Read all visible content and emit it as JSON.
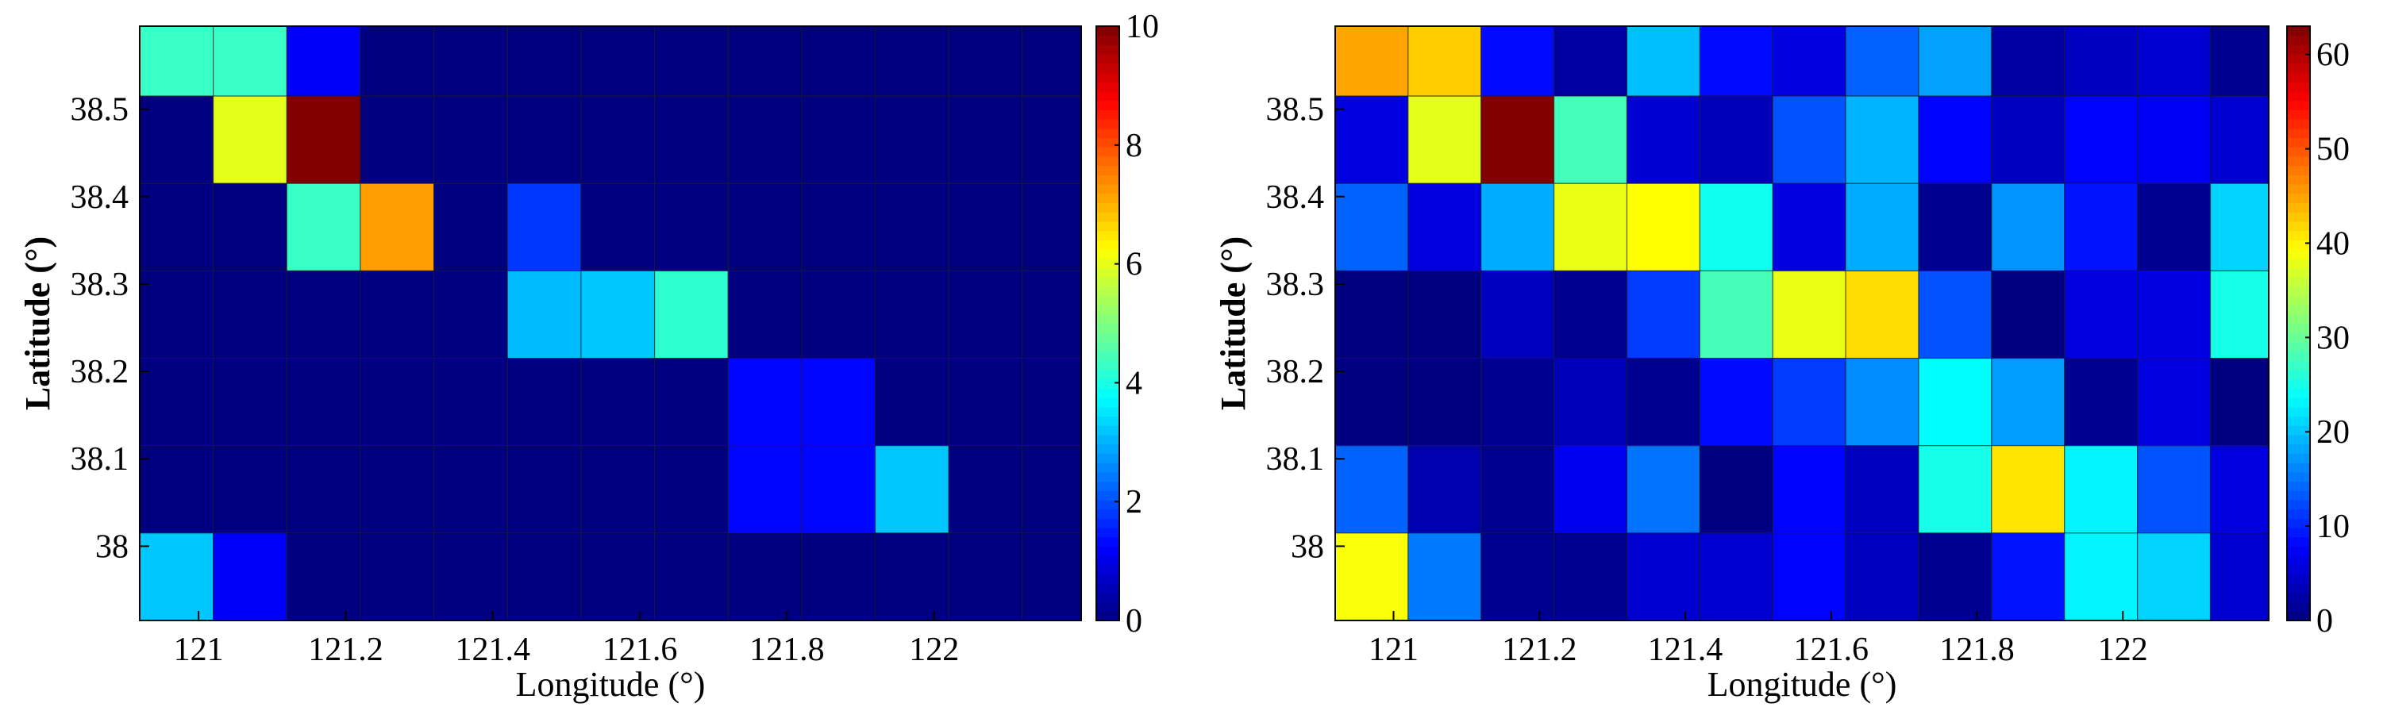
{
  "chart_data": [
    {
      "type": "heatmap",
      "xlabel": "Longitude (°)",
      "ylabel": "Latitude (°)",
      "xlim": [
        120.92,
        122.2
      ],
      "ylim": [
        37.915,
        38.595
      ],
      "x_edges": [
        120.92,
        121.02,
        121.12,
        121.22,
        121.32,
        121.42,
        121.52,
        121.62,
        121.72,
        121.82,
        121.92,
        122.02,
        122.12,
        122.2
      ],
      "y_edges": [
        38.595,
        38.515,
        38.415,
        38.315,
        38.215,
        38.115,
        38.015,
        37.915
      ],
      "x_ticks": [
        121,
        121.2,
        121.4,
        121.6,
        121.8,
        122
      ],
      "x_tick_labels": [
        "121",
        "121.2",
        "121.4",
        "121.6",
        "121.8",
        "122"
      ],
      "y_ticks": [
        38.5,
        38.4,
        38.3,
        38.2,
        38.1,
        38
      ],
      "y_tick_labels": [
        "38.5",
        "38.4",
        "38.3",
        "38.2",
        "38.1",
        "38"
      ],
      "colormap": "jet",
      "clim": [
        0,
        10
      ],
      "colorbar_ticks": [
        0,
        2,
        4,
        6,
        8,
        10
      ],
      "colorbar_tick_labels": [
        "0",
        "2",
        "4",
        "6",
        "8",
        "10"
      ],
      "values": [
        [
          4.3,
          4.3,
          1.2,
          0,
          0,
          0,
          0,
          0,
          0,
          0,
          0,
          0,
          0
        ],
        [
          0,
          6.0,
          10,
          0,
          0,
          0,
          0,
          0,
          0,
          0,
          0,
          0,
          0
        ],
        [
          0,
          0,
          4.3,
          7.2,
          0,
          1.8,
          0,
          0,
          0,
          0,
          0,
          0,
          0
        ],
        [
          0,
          0,
          0,
          0,
          0,
          3.1,
          3.2,
          4.2,
          0,
          0,
          0,
          0,
          0
        ],
        [
          0,
          0,
          0,
          0,
          0,
          0,
          0,
          0,
          1.3,
          1.3,
          0,
          0,
          0
        ],
        [
          0,
          0,
          0,
          0,
          0,
          0,
          0,
          0,
          1.3,
          1.3,
          3.2,
          0,
          0
        ],
        [
          3.2,
          1.2,
          0,
          0,
          0,
          0,
          0,
          0,
          0,
          0,
          0,
          0,
          0
        ]
      ]
    },
    {
      "type": "heatmap",
      "xlabel": "Longitude (°)",
      "ylabel": "Latitude (°)",
      "xlim": [
        120.92,
        122.2
      ],
      "ylim": [
        37.915,
        38.595
      ],
      "x_edges": [
        120.92,
        121.02,
        121.12,
        121.22,
        121.32,
        121.42,
        121.52,
        121.62,
        121.72,
        121.82,
        121.92,
        122.02,
        122.12,
        122.2
      ],
      "y_edges": [
        38.595,
        38.515,
        38.415,
        38.315,
        38.215,
        38.115,
        38.015,
        37.915
      ],
      "x_ticks": [
        121,
        121.2,
        121.4,
        121.6,
        121.8,
        122
      ],
      "x_tick_labels": [
        "121",
        "121.2",
        "121.4",
        "121.6",
        "121.8",
        "122"
      ],
      "y_ticks": [
        38.5,
        38.4,
        38.3,
        38.2,
        38.1,
        38
      ],
      "y_tick_labels": [
        "38.5",
        "38.4",
        "38.3",
        "38.2",
        "38.1",
        "38"
      ],
      "colormap": "jet",
      "clim": [
        0,
        63
      ],
      "colorbar_ticks": [
        0,
        10,
        20,
        30,
        40,
        50,
        60
      ],
      "colorbar_tick_labels": [
        "0",
        "10",
        "20",
        "30",
        "40",
        "50",
        "60"
      ],
      "values": [
        [
          45,
          42.5,
          8.5,
          2,
          19.7,
          8.5,
          6,
          14,
          17.8,
          2,
          4,
          5,
          1
        ],
        [
          6,
          37.8,
          63,
          27.8,
          5,
          3.5,
          13,
          19,
          8,
          4,
          8,
          7.5,
          5
        ],
        [
          14,
          6,
          18.5,
          38,
          39.4,
          24.5,
          6,
          18.5,
          1,
          17,
          9,
          1,
          21
        ],
        [
          0,
          0,
          4,
          1,
          11.5,
          28,
          38,
          41.5,
          13,
          0,
          6,
          6,
          25
        ],
        [
          0,
          0,
          1,
          3.5,
          1,
          8.5,
          11.5,
          16.5,
          23.6,
          17.5,
          1,
          6,
          0
        ],
        [
          14,
          3,
          1,
          7,
          15,
          0,
          8,
          4,
          25,
          41,
          23,
          13,
          6
        ],
        [
          39,
          15.5,
          1,
          1,
          5,
          5,
          8,
          4,
          1,
          9,
          23,
          21,
          5
        ]
      ]
    }
  ]
}
